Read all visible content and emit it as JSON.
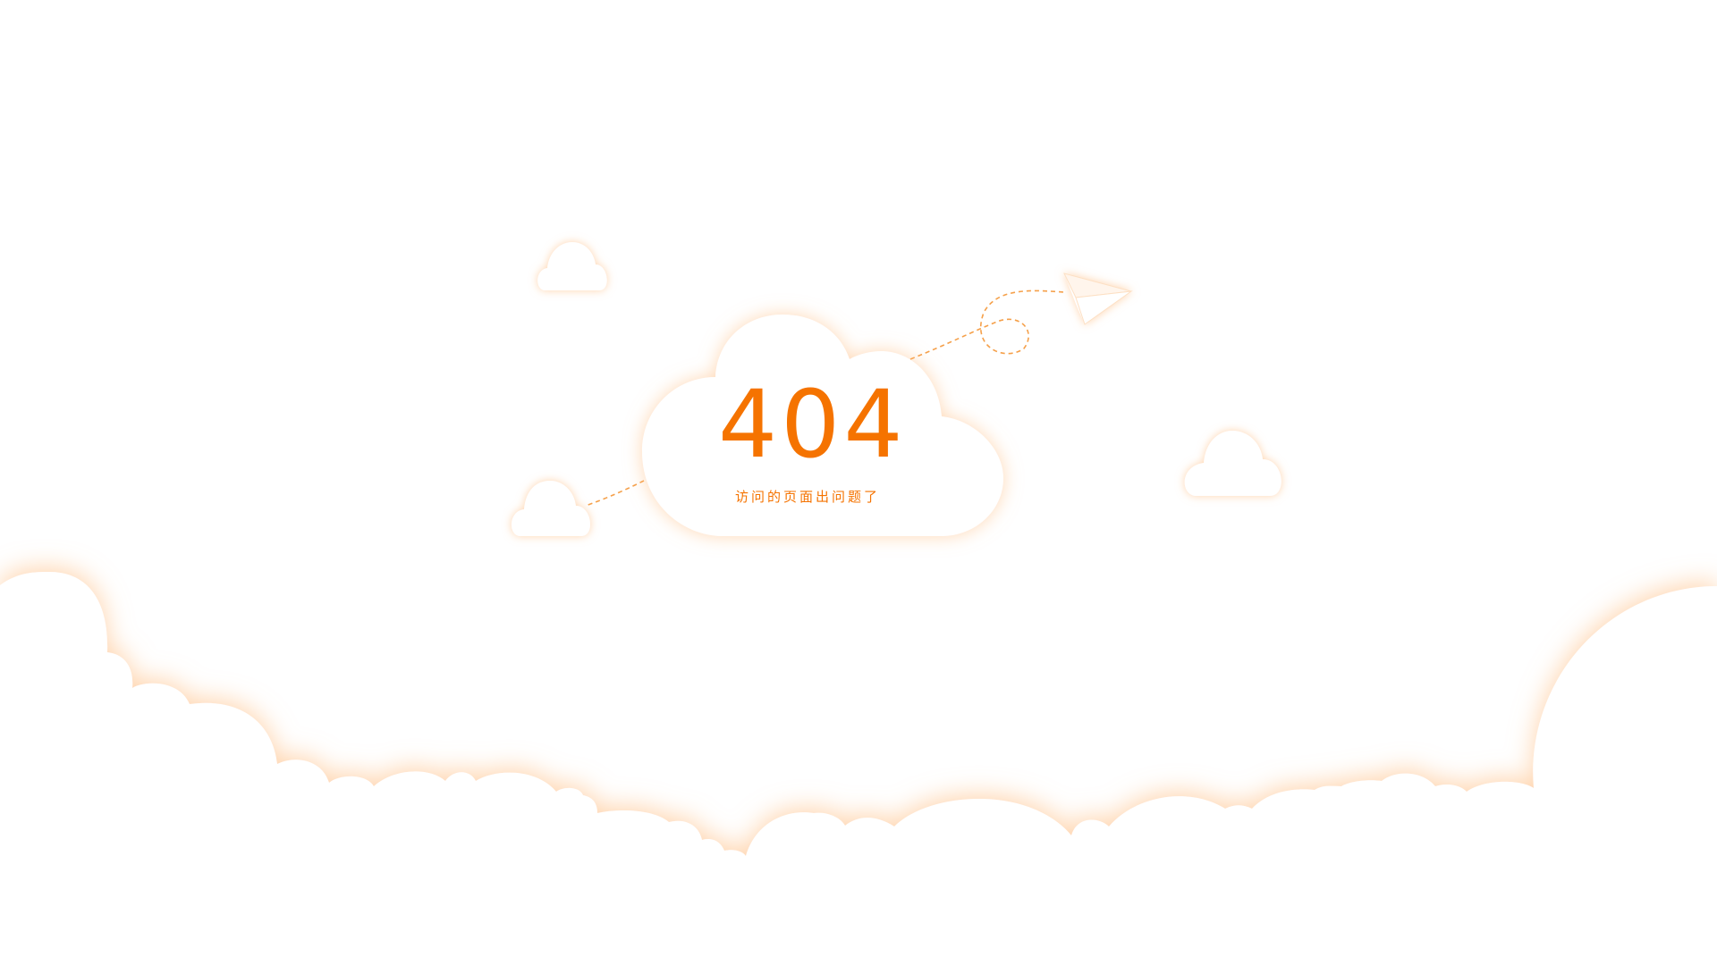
{
  "page": {
    "error_code": "404",
    "error_message": "访问的页面出问题了"
  },
  "theme": {
    "accent": "#f57300",
    "glow": "#ffb877",
    "background": "#ffffff"
  },
  "illustration": {
    "elements": [
      "main-cloud",
      "small-cloud-top-left",
      "small-cloud-left",
      "small-cloud-right",
      "paper-plane-icon",
      "cloud-bank-bottom"
    ]
  }
}
